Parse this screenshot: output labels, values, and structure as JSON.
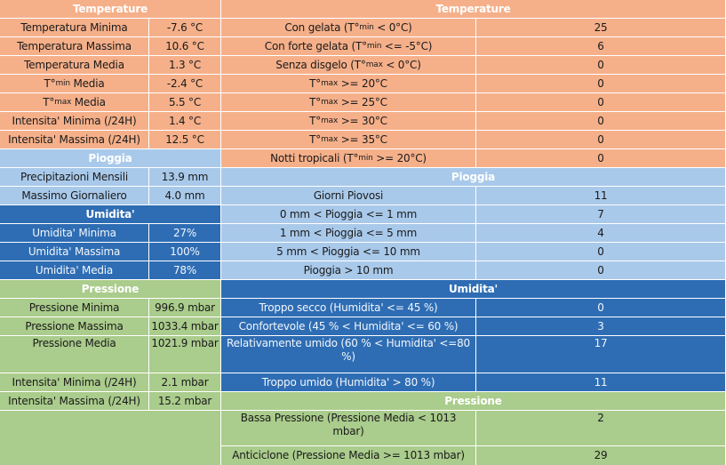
{
  "colors": {
    "temperature": "#f5b08a",
    "rain": "#a9c9ea",
    "humidity": "#2e6db4",
    "pressure": "#aacc8c"
  },
  "left": {
    "temp_header": "Temperature",
    "temp_rows": [
      {
        "label": "Temperatura Minima",
        "value": "-7.6 °C"
      },
      {
        "label": "Temperatura Massima",
        "value": "10.6 °C"
      },
      {
        "label": "Temperatura Media",
        "value": "1.3 °C"
      },
      {
        "label_pre": "T°",
        "label_sub": "min",
        "label_post": " Media",
        "value": "-2.4 °C"
      },
      {
        "label_pre": "T°",
        "label_sub": "max",
        "label_post": " Media",
        "value": "5.5 °C"
      },
      {
        "label": "Intensita' Minima (/24H)",
        "value": "1.4 °C"
      },
      {
        "label": "Intensita' Massima (/24H)",
        "value": "12.5 °C"
      }
    ],
    "rain_header": "Pioggia",
    "rain_rows": [
      {
        "label": "Precipitazioni Mensili",
        "value": "13.9 mm"
      },
      {
        "label": "Massimo Giornaliero",
        "value": "4.0 mm"
      }
    ],
    "hum_header": "Umidita'",
    "hum_rows": [
      {
        "label": "Umidita' Minima",
        "value": "27%"
      },
      {
        "label": "Umidita' Massima",
        "value": "100%"
      },
      {
        "label": "Umidita' Media",
        "value": "78%"
      }
    ],
    "press_header": "Pressione",
    "press_rows": [
      {
        "label": "Pressione Minima",
        "value": "996.9 mbar"
      },
      {
        "label": "Pressione Massima",
        "value": "1033.4 mbar"
      },
      {
        "label": "Pressione Media",
        "value": "1021.9 mbar"
      },
      {
        "label": "Intensita' Minima (/24H)",
        "value": "2.1 mbar"
      },
      {
        "label": "Intensita' Massima (/24H)",
        "value": "15.2 mbar"
      }
    ]
  },
  "right": {
    "temp_header": "Temperature",
    "temp_rows": [
      {
        "pre": "Con gelata (T°",
        "sub": "min",
        "post": " < 0°C)",
        "value": "25"
      },
      {
        "pre": "Con forte gelata (T°",
        "sub": "min",
        "post": " <= -5°C)",
        "value": "6"
      },
      {
        "pre": "Senza disgelo (T°",
        "sub": "max",
        "post": " < 0°C)",
        "value": "0"
      },
      {
        "pre": "T°",
        "sub": "max",
        "post": " >= 20°C",
        "value": "0"
      },
      {
        "pre": "T°",
        "sub": "max",
        "post": " >= 25°C",
        "value": "0"
      },
      {
        "pre": "T°",
        "sub": "max",
        "post": " >= 30°C",
        "value": "0"
      },
      {
        "pre": "T°",
        "sub": "max",
        "post": " >= 35°C",
        "value": "0"
      },
      {
        "pre": "Notti tropicali (T°",
        "sub": "min",
        "post": " >= 20°C)",
        "value": "0"
      }
    ],
    "rain_header": "Pioggia",
    "rain_rows": [
      {
        "label": "Giorni Piovosi",
        "value": "11"
      },
      {
        "label": "0 mm < Pioggia <= 1 mm",
        "value": "7"
      },
      {
        "label": "1 mm < Pioggia <= 5 mm",
        "value": "4"
      },
      {
        "label": "5 mm < Pioggia <= 10 mm",
        "value": "0"
      },
      {
        "label": "Pioggia > 10 mm",
        "value": "0"
      }
    ],
    "hum_header": "Umidita'",
    "hum_rows": [
      {
        "label": "Troppo secco (Humidita' <= 45 %)",
        "value": "0"
      },
      {
        "label": "Confortevole (45 % < Humidita' <= 60 %)",
        "value": "3"
      },
      {
        "label": "Relativamente umido (60 % < Humidita' <=80 %)",
        "value": "17"
      },
      {
        "label": "Troppo umido (Humidita' > 80 %)",
        "value": "11"
      }
    ],
    "press_header": "Pressione",
    "press_rows": [
      {
        "label": "Bassa Pressione (Pressione Media < 1013 mbar)",
        "value": "2"
      },
      {
        "label": "Anticiclone (Pressione Media >= 1013 mbar)",
        "value": "29"
      }
    ]
  }
}
